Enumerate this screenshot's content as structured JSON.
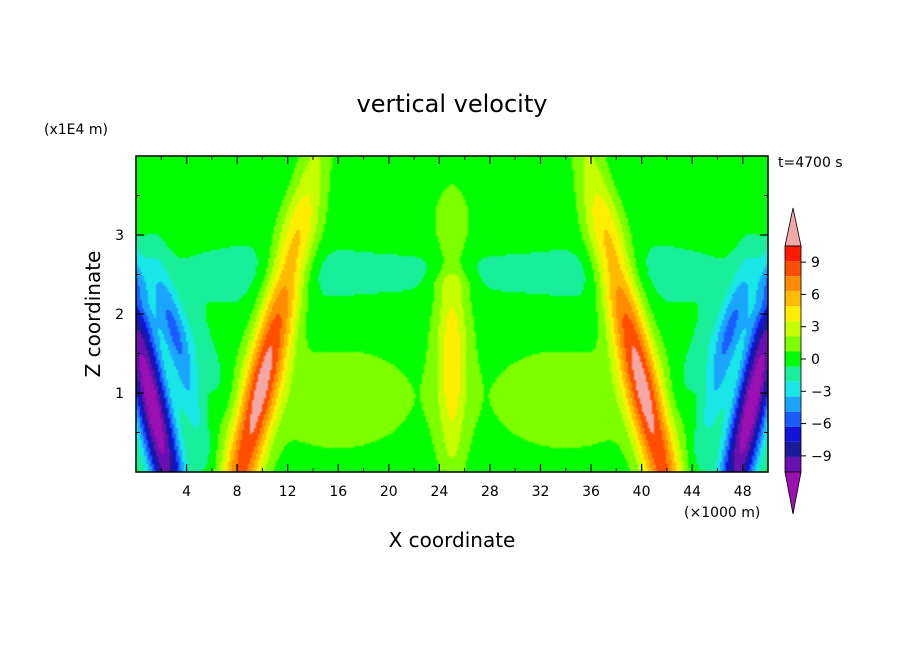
{
  "chart_data": {
    "type": "heatmap",
    "title": "vertical velocity",
    "xlabel": "X coordinate",
    "ylabel": "Z coordinate",
    "x_unit": "(×1000 m)",
    "y_unit": "(x1E4 m)",
    "time_label": "t=4700 s",
    "xlim": [
      0,
      50
    ],
    "ylim": [
      0,
      4
    ],
    "xticks": [
      "4",
      "8",
      "12",
      "16",
      "20",
      "24",
      "28",
      "32",
      "36",
      "40",
      "44",
      "48"
    ],
    "yticks": [
      "1",
      "2",
      "3"
    ],
    "colorbar": {
      "tick_labels": [
        "9",
        "6",
        "3",
        "0",
        "−3",
        "−6",
        "−9"
      ],
      "tick_values": [
        9,
        6,
        3,
        0,
        -3,
        -6,
        -9
      ],
      "levels": [
        -10.5,
        -9,
        -7.5,
        -6,
        -4.5,
        -3,
        -1.5,
        0,
        1.5,
        3,
        4.5,
        6,
        7.5,
        9,
        10.5
      ],
      "colors": [
        "#6a0fb0",
        "#1a1a9c",
        "#1212d8",
        "#1a5cff",
        "#1aa6ff",
        "#19e6e6",
        "#19ee9a",
        "#00ff00",
        "#7dff00",
        "#c8ff00",
        "#ffee00",
        "#ffbb00",
        "#ff8c00",
        "#ff4e00",
        "#ff1a00",
        "#f4a7a7"
      ],
      "under_color": "#9c0fb0",
      "over_color": "#f4a7a7"
    },
    "features": [
      {
        "x": 1.6,
        "z": 0.9,
        "value": -11
      },
      {
        "x": 48.4,
        "z": 0.9,
        "value": -11
      },
      {
        "x": 9.8,
        "z": 1.0,
        "value": 8.5
      },
      {
        "x": 40.2,
        "z": 1.0,
        "value": 8.5
      },
      {
        "x": 25.0,
        "z": 1.7,
        "value": 3.5
      }
    ]
  }
}
